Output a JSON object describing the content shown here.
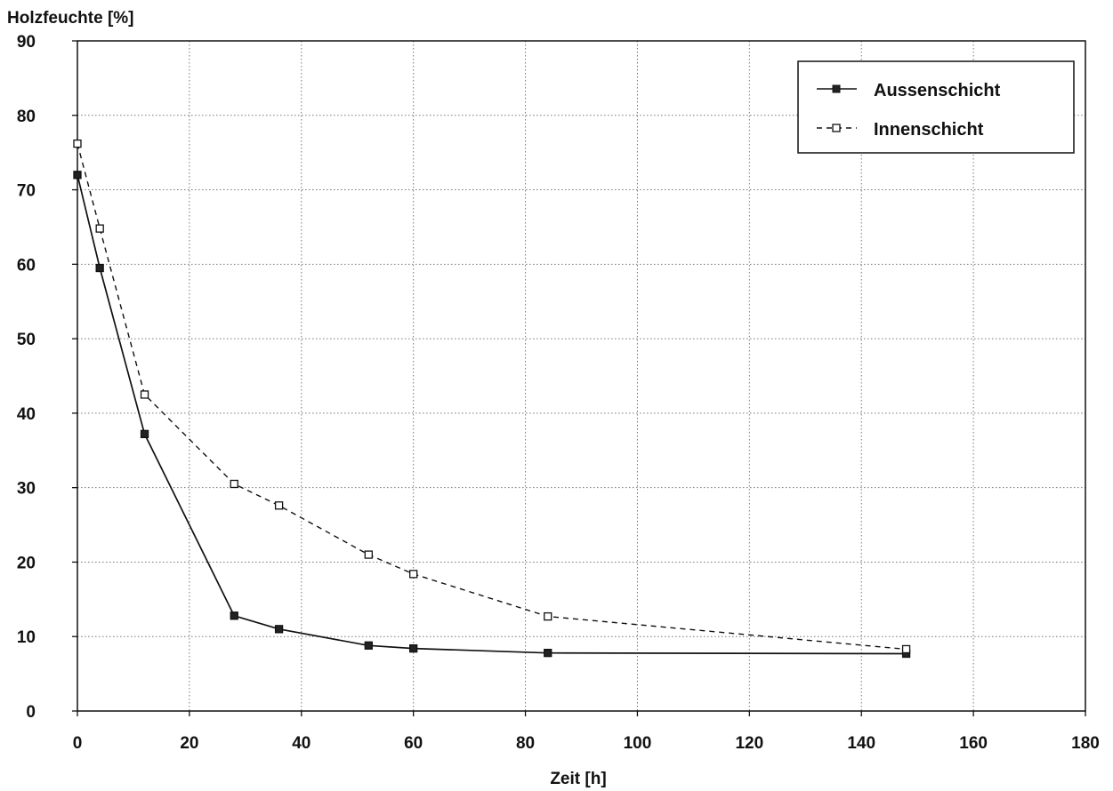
{
  "chart_data": {
    "type": "line",
    "title": "",
    "ylabel": "Holzfeuchte [%]",
    "xlabel": "Zeit [h]",
    "xlim": [
      0,
      180
    ],
    "ylim": [
      0,
      90
    ],
    "x_ticks": [
      "0",
      "20",
      "40",
      "60",
      "80",
      "100",
      "120",
      "140",
      "160",
      "180"
    ],
    "y_ticks": [
      "0",
      "10",
      "20",
      "30",
      "40",
      "50",
      "60",
      "70",
      "80",
      "90"
    ],
    "grid": true,
    "legend_position": "top-right",
    "series": [
      {
        "name": "Aussenschicht",
        "line_style": "solid",
        "marker": "filled-square",
        "points": [
          [
            0,
            72
          ],
          [
            4,
            59.5
          ],
          [
            12,
            37.2
          ],
          [
            28,
            12.8
          ],
          [
            36,
            11
          ],
          [
            52,
            8.8
          ],
          [
            60,
            8.4
          ],
          [
            84,
            7.8
          ],
          [
            148,
            7.7
          ]
        ]
      },
      {
        "name": "Innenschicht",
        "line_style": "dashed",
        "marker": "open-square",
        "points": [
          [
            0,
            76.2
          ],
          [
            4,
            64.8
          ],
          [
            12,
            42.5
          ],
          [
            28,
            30.5
          ],
          [
            36,
            27.6
          ],
          [
            52,
            21
          ],
          [
            60,
            18.4
          ],
          [
            84,
            12.7
          ],
          [
            148,
            8.3
          ]
        ]
      }
    ]
  }
}
